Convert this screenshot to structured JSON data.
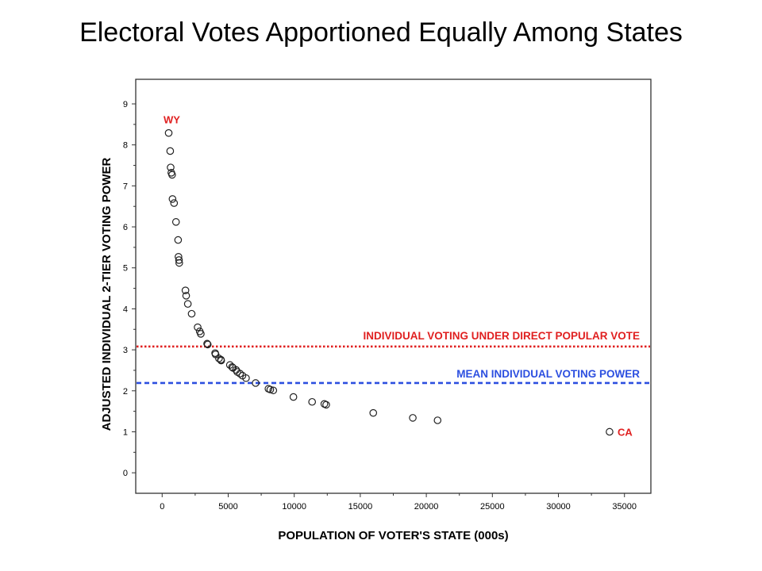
{
  "slide": {
    "title": "Electoral Votes Apportioned Equally Among States"
  },
  "colors": {
    "direct_line": "#e02020",
    "mean_line": "#2c4fe0",
    "points": "#222222",
    "label_red": "#e02020"
  },
  "chart_data": {
    "type": "scatter",
    "xlabel": "POPULATION OF VOTER'S STATE (000s)",
    "ylabel": "ADJUSTED INDIVIDUAL 2-TIER VOTING POWER",
    "xlim": [
      -2000,
      37000
    ],
    "ylim": [
      -0.5,
      9.6
    ],
    "x_ticks": [
      0,
      5000,
      10000,
      15000,
      20000,
      25000,
      30000,
      35000
    ],
    "y_ticks": [
      0,
      1,
      2,
      3,
      4,
      5,
      6,
      7,
      8,
      9
    ],
    "grid": false,
    "reference_lines": [
      {
        "label": "INDIVIDUAL VOTING UNDER DIRECT POPULAR VOTE",
        "y": 3.08,
        "style": "dotted",
        "color": "#e02020"
      },
      {
        "label": "MEAN INDIVIDUAL VOTING POWER",
        "y": 2.19,
        "style": "dashed",
        "color": "#2c4fe0"
      }
    ],
    "point_labels": [
      {
        "text": "WY",
        "x": 494,
        "y": 8.29,
        "position": "above"
      },
      {
        "text": "CA",
        "x": 33872,
        "y": 1.0,
        "position": "right"
      }
    ],
    "series": [
      {
        "x": [
          494,
          609,
          643,
          695,
          754,
          784,
          903,
          1048,
          1209,
          1236,
          1275,
          1294,
          1764,
          1819,
          1944,
          2233,
          2688,
          2845,
          2926,
          3406,
          3451,
          4012,
          4042,
          4301,
          4447,
          4469,
          5130,
          5296,
          5363,
          5595,
          5689,
          5894,
          6080,
          6349,
          7078,
          8049,
          8186,
          8414,
          9938,
          11353,
          12281,
          12419,
          15982,
          18976,
          20852,
          33872
        ],
        "y": [
          8.29,
          7.85,
          7.45,
          7.32,
          7.27,
          6.68,
          6.58,
          6.12,
          5.68,
          5.27,
          5.19,
          5.12,
          4.45,
          4.32,
          4.12,
          3.88,
          3.55,
          3.45,
          3.39,
          3.15,
          3.13,
          2.92,
          2.89,
          2.79,
          2.76,
          2.74,
          2.63,
          2.58,
          2.56,
          2.51,
          2.46,
          2.42,
          2.37,
          2.31,
          2.19,
          2.05,
          2.03,
          2.01,
          1.85,
          1.73,
          1.68,
          1.66,
          1.46,
          1.34,
          1.28,
          1.0
        ]
      }
    ]
  }
}
